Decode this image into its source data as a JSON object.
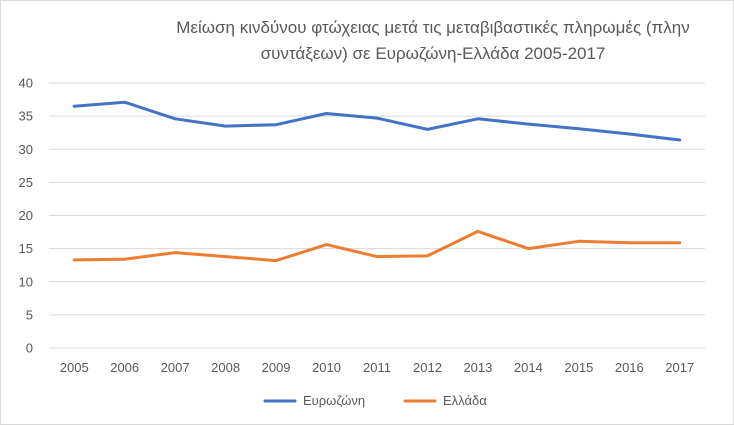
{
  "chart_data": {
    "type": "line",
    "title": "Μείωση κινδύνου φτώχειας μετά τις μεταβιβαστικές πληρωμές (πλην συντάξεων) σε Ευρωζώνη-Ελλάδα 2005-2017",
    "title_lines": [
      "Μείωση κινδύνου φτώχειας μετά τις μεταβιβαστικές πληρωμές (πλην",
      "συντάξεων) σε Ευρωζώνη-Ελλάδα 2005-2017"
    ],
    "xlabel": "",
    "ylabel": "",
    "categories": [
      "2005",
      "2006",
      "2007",
      "2008",
      "2009",
      "2010",
      "2011",
      "2012",
      "2013",
      "2014",
      "2015",
      "2016",
      "2017"
    ],
    "ylim": [
      0,
      40
    ],
    "yticks": [
      0,
      5,
      10,
      15,
      20,
      25,
      30,
      35,
      40
    ],
    "grid": true,
    "legend_position": "bottom",
    "series": [
      {
        "name": "Ευρωζώνη",
        "color": "#4472c4",
        "values": [
          36.5,
          37.1,
          34.6,
          33.5,
          33.7,
          35.4,
          34.7,
          33.0,
          34.6,
          33.8,
          33.1,
          32.3,
          31.4
        ]
      },
      {
        "name": "Ελλάδα",
        "color": "#ed7d31",
        "values": [
          13.3,
          13.4,
          14.4,
          13.8,
          13.2,
          15.6,
          13.8,
          13.9,
          17.6,
          15.0,
          16.1,
          15.9,
          15.9
        ]
      }
    ]
  }
}
